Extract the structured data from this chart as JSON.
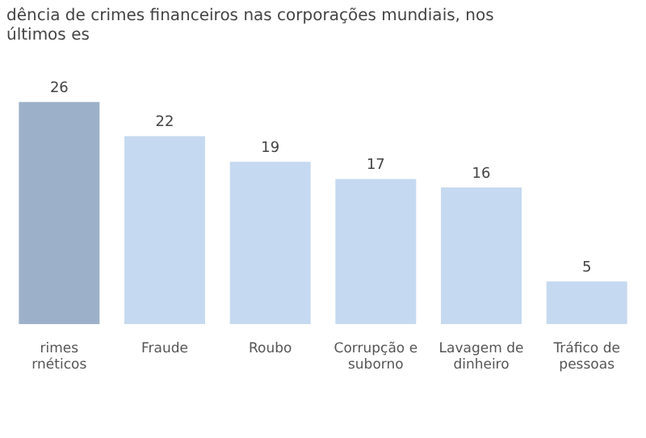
{
  "chart_data": {
    "type": "bar",
    "title": "dência de crimes financeiros nas corporações mundiais, nos últimos es",
    "categories": [
      "rimes rnéticos",
      "Fraude",
      "Roubo",
      "Corrupção e suborno",
      "Lavagem de dinheiro",
      "Tráfico de pessoas"
    ],
    "values": [
      26,
      22,
      19,
      17,
      16,
      5
    ],
    "colors": [
      "#9cb1c9",
      "#c5d9f0",
      "#c5d9f0",
      "#c5d9f0",
      "#c5d9f0",
      "#c5d9f0"
    ],
    "data_labels": true,
    "grid": false,
    "legend": false
  }
}
